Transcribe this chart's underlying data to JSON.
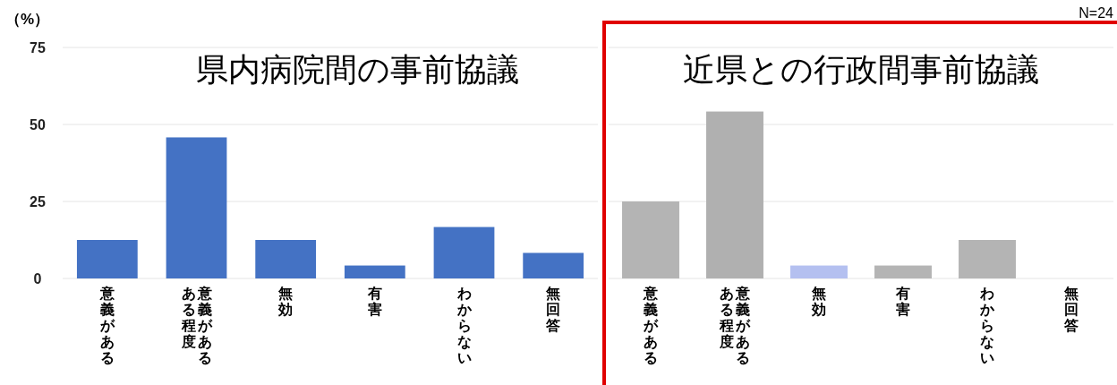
{
  "chart_data": [
    {
      "type": "bar",
      "title": "県内病院間の事前協議",
      "ylabel": "（%）",
      "categories": [
        "意義がある",
        "ある程度意義がある",
        "無効",
        "有害",
        "わからない",
        "無回答"
      ],
      "values": [
        12.5,
        45.8,
        12.5,
        4.2,
        16.7,
        8.3
      ],
      "color": "#4472c4",
      "ylim": [
        0,
        75
      ],
      "yticks": [
        0,
        25,
        50,
        75
      ],
      "grid": "y"
    },
    {
      "type": "bar",
      "title": "近県との行政間事前協議",
      "categories": [
        "意義がある",
        "ある程度意義がある",
        "無効",
        "有害",
        "わからない",
        "無回答"
      ],
      "values": [
        25,
        54.2,
        4.2,
        4.2,
        12.5,
        0
      ],
      "colors": [
        "#b4b4b4",
        "#b0b0b0",
        "#b4c0f0",
        "#b4b4b4",
        "#b4b4b4",
        "#b4b4b4"
      ],
      "ylim": [
        0,
        75
      ],
      "yticks": [
        0,
        25,
        50,
        75
      ],
      "grid": "y",
      "tick_labels": "x",
      "annotations": [
        "N=24"
      ]
    }
  ]
}
